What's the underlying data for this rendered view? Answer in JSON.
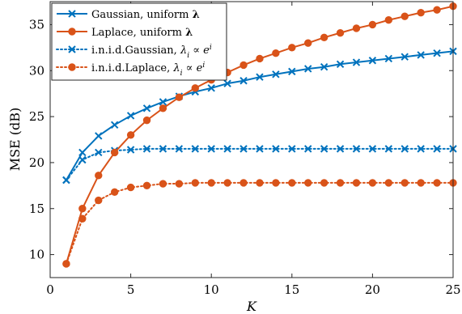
{
  "chart_data": {
    "type": "line",
    "xlabel": "K",
    "ylabel": "MSE (dB)",
    "xlim": [
      0,
      25
    ],
    "ylim": [
      7.5,
      37.5
    ],
    "xticks": [
      0,
      5,
      10,
      15,
      20,
      25
    ],
    "yticks": [
      10,
      15,
      20,
      25,
      30,
      35
    ],
    "grid": false,
    "legend_position": "top-left",
    "x": [
      1,
      2,
      3,
      4,
      5,
      6,
      7,
      8,
      9,
      10,
      11,
      12,
      13,
      14,
      15,
      16,
      17,
      18,
      19,
      20,
      21,
      22,
      23,
      24,
      25
    ],
    "series": [
      {
        "name": "Gaussian, uniform λ",
        "color": "#0072BD",
        "marker": "x",
        "line": "solid",
        "values": [
          18.1,
          21.1,
          22.9,
          24.1,
          25.1,
          25.9,
          26.6,
          27.2,
          27.7,
          28.1,
          28.6,
          28.9,
          29.3,
          29.6,
          29.9,
          30.2,
          30.4,
          30.7,
          30.9,
          31.1,
          31.3,
          31.5,
          31.7,
          31.9,
          32.1
        ]
      },
      {
        "name": "Laplace, uniform λ",
        "color": "#D95319",
        "marker": "o",
        "line": "solid",
        "values": [
          9.0,
          15.0,
          18.6,
          21.1,
          23.0,
          24.6,
          25.9,
          27.1,
          28.1,
          29.0,
          29.8,
          30.6,
          31.3,
          31.9,
          32.5,
          33.0,
          33.6,
          34.1,
          34.6,
          35.0,
          35.5,
          35.9,
          36.3,
          36.6,
          37.0
        ]
      },
      {
        "name": "i.n.i.d.Gaussian, λi ∝ e^i",
        "color": "#0072BD",
        "marker": "x",
        "line": "dotted",
        "values": [
          18.1,
          20.3,
          21.1,
          21.3,
          21.4,
          21.5,
          21.5,
          21.5,
          21.5,
          21.5,
          21.5,
          21.5,
          21.5,
          21.5,
          21.5,
          21.5,
          21.5,
          21.5,
          21.5,
          21.5,
          21.5,
          21.5,
          21.5,
          21.5,
          21.5
        ]
      },
      {
        "name": "i.n.i.d.Laplace, λi ∝ e^i",
        "color": "#D95319",
        "marker": "o",
        "line": "dotted",
        "values": [
          9.0,
          13.9,
          15.9,
          16.8,
          17.3,
          17.5,
          17.7,
          17.7,
          17.8,
          17.8,
          17.8,
          17.8,
          17.8,
          17.8,
          17.8,
          17.8,
          17.8,
          17.8,
          17.8,
          17.8,
          17.8,
          17.8,
          17.8,
          17.8,
          17.8
        ]
      }
    ]
  }
}
